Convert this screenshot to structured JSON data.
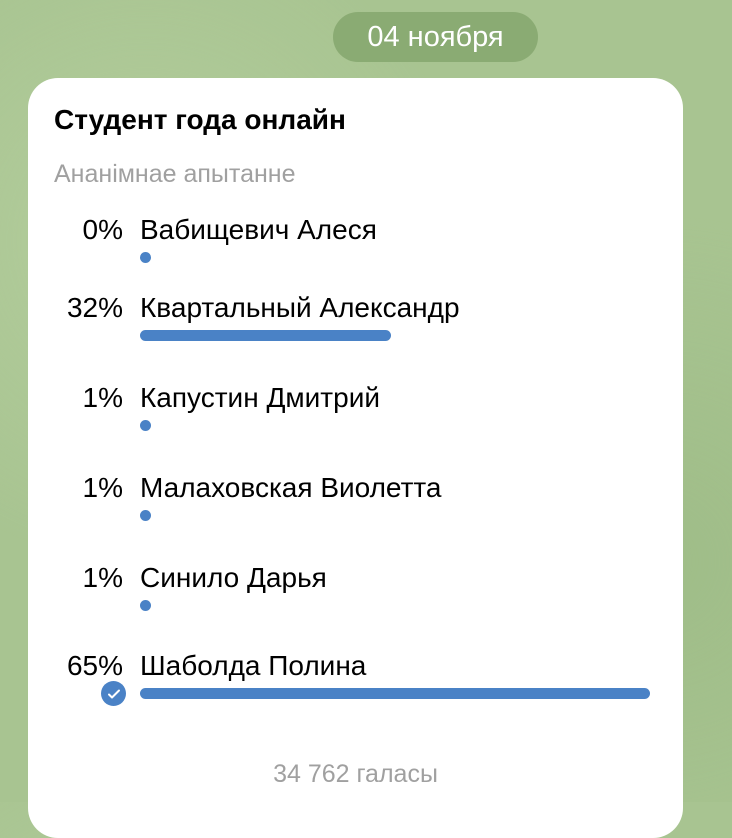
{
  "date_label": "04 ноября",
  "poll": {
    "title": "Студент года онлайн",
    "type_label": "Ананімнае апытанне",
    "accent_color": "#4a82c6",
    "options": [
      {
        "percent_label": "0%",
        "percent": 0,
        "name": "Вабищевич Алеся",
        "selected": false
      },
      {
        "percent_label": "32%",
        "percent": 32,
        "name": "Квартальный Александр",
        "selected": false
      },
      {
        "percent_label": "1%",
        "percent": 1,
        "name": "Капустин Дмитрий",
        "selected": false
      },
      {
        "percent_label": "1%",
        "percent": 1,
        "name": "Малаховская Виолетта",
        "selected": false
      },
      {
        "percent_label": "1%",
        "percent": 1,
        "name": "Синило Дарья",
        "selected": false
      },
      {
        "percent_label": "65%",
        "percent": 65,
        "name": "Шаболда Полина",
        "selected": true
      }
    ],
    "total_votes": "34 762 галасы"
  }
}
